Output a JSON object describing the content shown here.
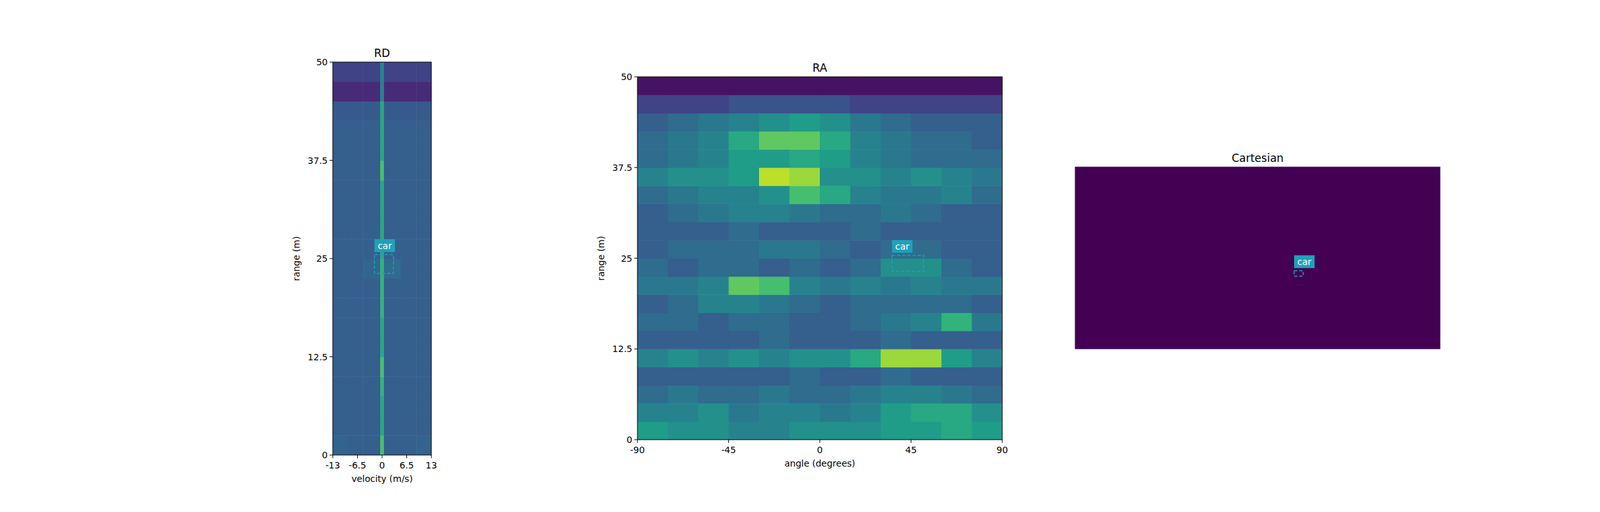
{
  "chart_data": [
    {
      "type": "heatmap",
      "title": "RD",
      "x_label": "velocity (m/s)",
      "y_label": "range (m)",
      "xlim": [
        -13,
        13
      ],
      "ylim": [
        0,
        50
      ],
      "xticks": [
        -13,
        -6.5,
        0,
        6.5,
        13
      ],
      "yticks": [
        0,
        12.5,
        25,
        37.5,
        50
      ],
      "value_range": [
        0,
        1
      ],
      "cells": {
        "x_edges": [
          -13,
          -9,
          -5,
          -0.5,
          0.5,
          5,
          9,
          13
        ],
        "y_edges": [
          0,
          2.5,
          5,
          7.5,
          10,
          12.5,
          15,
          17.5,
          20,
          22.5,
          25,
          27.5,
          30,
          32.5,
          35,
          37.5,
          40,
          42.5,
          45,
          47.5,
          50
        ],
        "values": [
          [
            0.32,
            0.3,
            0.3,
            0.7,
            0.3,
            0.3,
            0.32
          ],
          [
            0.3,
            0.3,
            0.3,
            0.6,
            0.3,
            0.3,
            0.3
          ],
          [
            0.3,
            0.3,
            0.3,
            0.6,
            0.3,
            0.3,
            0.3
          ],
          [
            0.3,
            0.3,
            0.3,
            0.65,
            0.3,
            0.3,
            0.3
          ],
          [
            0.3,
            0.3,
            0.3,
            0.7,
            0.3,
            0.3,
            0.3
          ],
          [
            0.3,
            0.3,
            0.3,
            0.6,
            0.3,
            0.3,
            0.3
          ],
          [
            0.3,
            0.3,
            0.3,
            0.6,
            0.3,
            0.3,
            0.3
          ],
          [
            0.3,
            0.3,
            0.3,
            0.65,
            0.3,
            0.3,
            0.3
          ],
          [
            0.3,
            0.3,
            0.3,
            0.65,
            0.3,
            0.3,
            0.3
          ],
          [
            0.3,
            0.3,
            0.33,
            0.65,
            0.35,
            0.3,
            0.3
          ],
          [
            0.3,
            0.3,
            0.3,
            0.6,
            0.3,
            0.3,
            0.3
          ],
          [
            0.3,
            0.3,
            0.3,
            0.6,
            0.3,
            0.3,
            0.3
          ],
          [
            0.3,
            0.3,
            0.3,
            0.6,
            0.3,
            0.3,
            0.3
          ],
          [
            0.3,
            0.3,
            0.3,
            0.6,
            0.3,
            0.3,
            0.3
          ],
          [
            0.3,
            0.3,
            0.3,
            0.7,
            0.3,
            0.3,
            0.3
          ],
          [
            0.3,
            0.3,
            0.3,
            0.6,
            0.3,
            0.3,
            0.3
          ],
          [
            0.3,
            0.3,
            0.3,
            0.6,
            0.3,
            0.3,
            0.3
          ],
          [
            0.28,
            0.28,
            0.28,
            0.6,
            0.28,
            0.28,
            0.28
          ],
          [
            0.12,
            0.12,
            0.12,
            0.45,
            0.12,
            0.12,
            0.12
          ],
          [
            0.2,
            0.2,
            0.2,
            0.45,
            0.2,
            0.2,
            0.2
          ]
        ]
      },
      "boxes": [
        {
          "label": "car",
          "x": [
            -2,
            3
          ],
          "y": [
            23.1,
            25.5
          ],
          "color": "#22a0b8"
        }
      ]
    },
    {
      "type": "heatmap",
      "title": "RA",
      "x_label": "angle (degrees)",
      "y_label": "range (m)",
      "xlim": [
        -90,
        90
      ],
      "ylim": [
        0,
        50
      ],
      "xticks": [
        -90,
        -45,
        0,
        45,
        90
      ],
      "yticks": [
        0,
        12.5,
        25,
        37.5,
        50
      ],
      "value_range": [
        0,
        1
      ],
      "cells": {
        "x_edges": [
          -90,
          -75,
          -60,
          -45,
          -30,
          -15,
          0,
          15,
          30,
          45,
          60,
          75,
          90
        ],
        "y_edges": [
          0,
          2.5,
          5,
          7.5,
          10,
          12.5,
          15,
          17.5,
          20,
          22.5,
          25,
          27.5,
          30,
          32.5,
          35,
          37.5,
          40,
          42.5,
          45,
          47.5,
          50
        ],
        "values": [
          [
            0.55,
            0.5,
            0.5,
            0.45,
            0.45,
            0.5,
            0.5,
            0.5,
            0.55,
            0.55,
            0.6,
            0.55
          ],
          [
            0.45,
            0.45,
            0.5,
            0.4,
            0.45,
            0.45,
            0.4,
            0.45,
            0.55,
            0.6,
            0.6,
            0.5
          ],
          [
            0.35,
            0.4,
            0.35,
            0.35,
            0.4,
            0.35,
            0.35,
            0.4,
            0.45,
            0.45,
            0.4,
            0.35
          ],
          [
            0.3,
            0.3,
            0.3,
            0.3,
            0.3,
            0.35,
            0.3,
            0.3,
            0.35,
            0.3,
            0.3,
            0.3
          ],
          [
            0.45,
            0.5,
            0.45,
            0.5,
            0.45,
            0.5,
            0.5,
            0.6,
            0.85,
            0.85,
            0.55,
            0.45
          ],
          [
            0.3,
            0.3,
            0.3,
            0.3,
            0.35,
            0.3,
            0.3,
            0.3,
            0.35,
            0.3,
            0.3,
            0.3
          ],
          [
            0.35,
            0.35,
            0.3,
            0.35,
            0.35,
            0.3,
            0.3,
            0.35,
            0.4,
            0.45,
            0.65,
            0.4
          ],
          [
            0.3,
            0.35,
            0.45,
            0.45,
            0.4,
            0.35,
            0.3,
            0.35,
            0.35,
            0.35,
            0.35,
            0.3
          ],
          [
            0.4,
            0.4,
            0.45,
            0.75,
            0.7,
            0.45,
            0.4,
            0.45,
            0.4,
            0.45,
            0.4,
            0.4
          ],
          [
            0.35,
            0.3,
            0.35,
            0.35,
            0.3,
            0.35,
            0.3,
            0.35,
            0.5,
            0.5,
            0.35,
            0.3
          ],
          [
            0.3,
            0.35,
            0.35,
            0.35,
            0.4,
            0.4,
            0.35,
            0.3,
            0.35,
            0.35,
            0.3,
            0.3
          ],
          [
            0.3,
            0.3,
            0.3,
            0.35,
            0.3,
            0.3,
            0.3,
            0.35,
            0.3,
            0.3,
            0.3,
            0.3
          ],
          [
            0.3,
            0.35,
            0.4,
            0.45,
            0.45,
            0.4,
            0.35,
            0.35,
            0.4,
            0.35,
            0.3,
            0.3
          ],
          [
            0.35,
            0.4,
            0.45,
            0.45,
            0.5,
            0.7,
            0.6,
            0.45,
            0.4,
            0.4,
            0.45,
            0.35
          ],
          [
            0.45,
            0.5,
            0.5,
            0.55,
            0.9,
            0.85,
            0.5,
            0.5,
            0.45,
            0.5,
            0.45,
            0.4
          ],
          [
            0.35,
            0.4,
            0.45,
            0.55,
            0.55,
            0.6,
            0.55,
            0.45,
            0.4,
            0.35,
            0.35,
            0.35
          ],
          [
            0.35,
            0.4,
            0.45,
            0.6,
            0.75,
            0.75,
            0.6,
            0.45,
            0.4,
            0.35,
            0.35,
            0.3
          ],
          [
            0.3,
            0.35,
            0.4,
            0.45,
            0.5,
            0.55,
            0.5,
            0.4,
            0.35,
            0.3,
            0.3,
            0.3
          ],
          [
            0.2,
            0.2,
            0.2,
            0.25,
            0.25,
            0.25,
            0.25,
            0.2,
            0.2,
            0.2,
            0.2,
            0.2
          ],
          [
            0.05,
            0.05,
            0.05,
            0.05,
            0.05,
            0.05,
            0.05,
            0.05,
            0.05,
            0.05,
            0.05,
            0.05
          ]
        ]
      },
      "boxes": [
        {
          "label": "car",
          "x": [
            35.6,
            51.2
          ],
          "y": [
            23.2,
            25.4
          ],
          "color": "#22a0b8"
        }
      ]
    },
    {
      "type": "heatmap",
      "title": "Cartesian",
      "tick_labels": false,
      "xlim": [
        -50,
        50
      ],
      "ylim": [
        0,
        50
      ],
      "value_range": [
        0,
        1
      ],
      "cells": {
        "x_edges": [
          -50,
          50
        ],
        "y_edges": [
          0,
          50
        ],
        "values": [
          [
            0
          ]
        ]
      },
      "boxes": [
        {
          "label": "car",
          "x": [
            10,
            12.5
          ],
          "y": [
            20,
            21.5
          ],
          "color": "#22a0b8"
        }
      ]
    }
  ]
}
